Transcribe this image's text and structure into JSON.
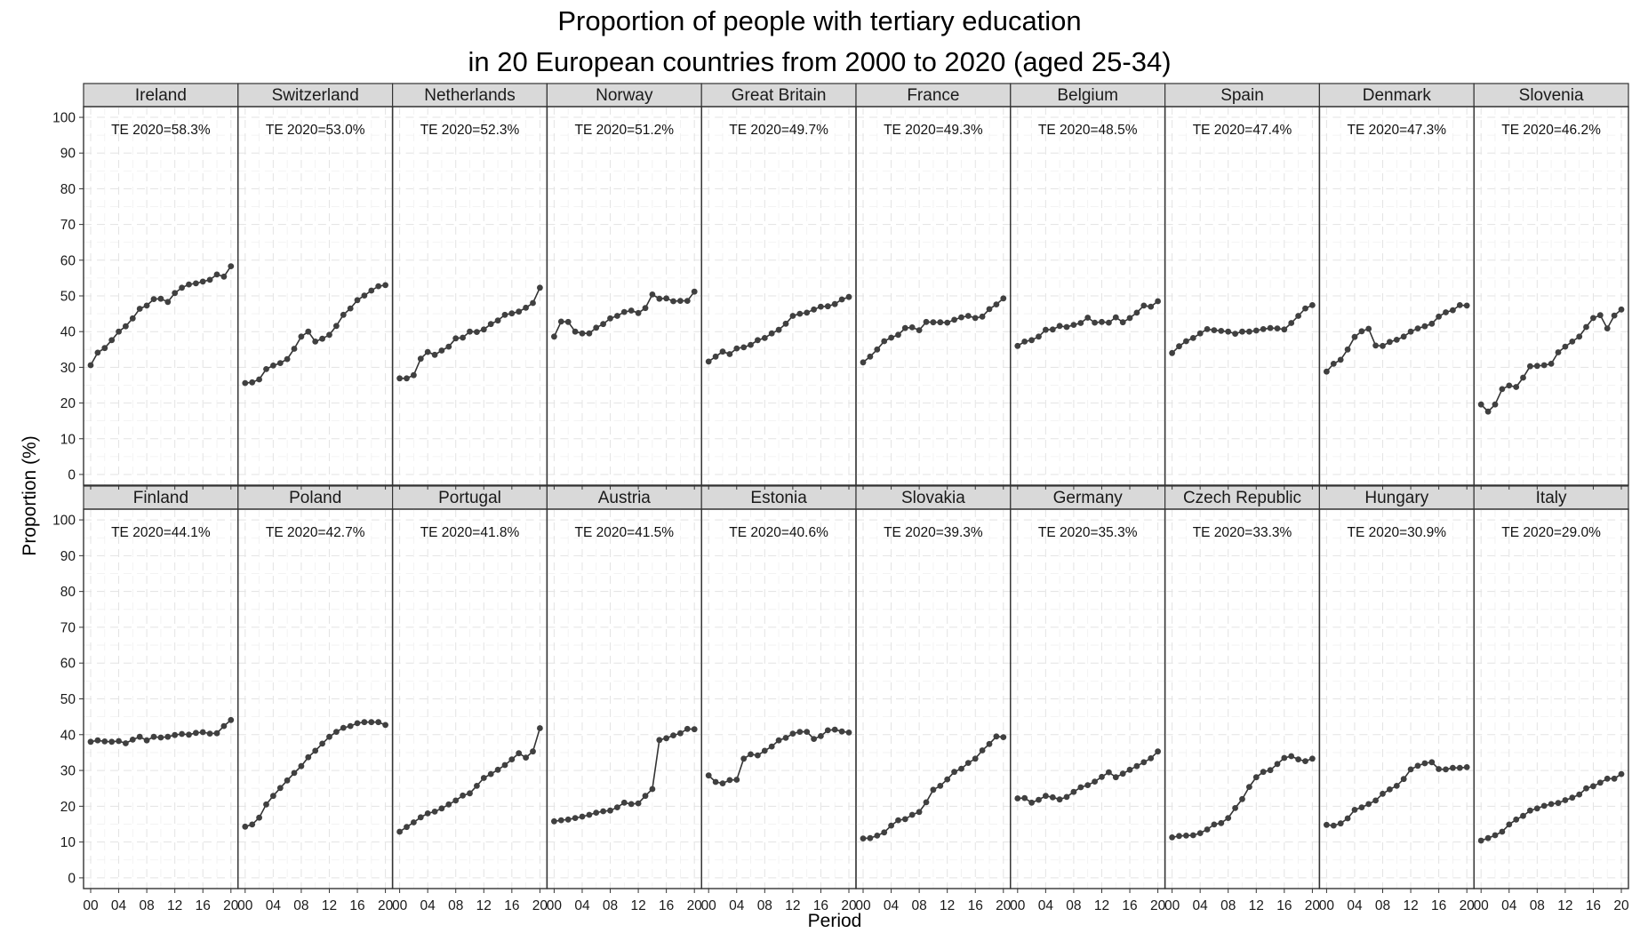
{
  "chart_data": {
    "type": "line",
    "title": [
      "Proportion of people with tertiary education",
      "in 20 European countries from 2000 to 2020 (aged 25-34)"
    ],
    "xlabel": "Period",
    "ylabel": "Proportion (%)",
    "x": [
      2000,
      2001,
      2002,
      2003,
      2004,
      2005,
      2006,
      2007,
      2008,
      2009,
      2010,
      2011,
      2012,
      2013,
      2014,
      2015,
      2016,
      2017,
      2018,
      2019,
      2020
    ],
    "x_ticks": [
      "00",
      "04",
      "08",
      "12",
      "16",
      "20"
    ],
    "x_tick_values": [
      2000,
      2004,
      2008,
      2012,
      2016,
      2020
    ],
    "ylim": [
      -3,
      103
    ],
    "y_ticks": [
      0,
      10,
      20,
      30,
      40,
      50,
      60,
      70,
      80,
      90,
      100
    ],
    "layout": "facet 2 rows x 10 columns",
    "grid": true,
    "panels": [
      {
        "country": "Ireland",
        "annotation": "TE 2020=58.3%",
        "values": [
          30.6,
          34.1,
          35.4,
          37.6,
          40.0,
          41.5,
          43.7,
          46.4,
          47.3,
          49.1,
          49.2,
          48.3,
          50.8,
          52.3,
          53.2,
          53.5,
          54.0,
          54.5,
          56.0,
          55.4,
          58.3
        ]
      },
      {
        "country": "Switzerland",
        "annotation": "TE 2020=53.0%",
        "values": [
          25.6,
          25.8,
          26.6,
          29.5,
          30.5,
          31.2,
          32.3,
          35.2,
          38.6,
          40.0,
          37.2,
          38.0,
          39.1,
          41.6,
          44.7,
          46.5,
          48.8,
          50.1,
          51.5,
          52.7,
          53.0
        ]
      },
      {
        "country": "Netherlands",
        "annotation": "TE 2020=52.3%",
        "values": [
          26.9,
          26.9,
          27.8,
          32.4,
          34.3,
          33.5,
          34.7,
          35.8,
          38.1,
          38.3,
          40.0,
          39.9,
          40.6,
          42.1,
          43.1,
          44.7,
          45.1,
          45.6,
          46.7,
          48.0,
          52.3
        ]
      },
      {
        "country": "Norway",
        "annotation": "TE 2020=51.2%",
        "values": [
          38.6,
          42.8,
          42.7,
          40.0,
          39.5,
          39.5,
          41.1,
          42.1,
          43.7,
          44.4,
          45.5,
          45.9,
          45.2,
          46.6,
          50.4,
          49.2,
          49.3,
          48.5,
          48.6,
          48.6,
          51.2
        ]
      },
      {
        "country": "Great Britain",
        "annotation": "TE 2020=49.7%",
        "values": [
          31.6,
          33.0,
          34.4,
          33.7,
          35.3,
          35.6,
          36.3,
          37.6,
          38.2,
          39.5,
          40.5,
          42.2,
          44.4,
          45.0,
          45.3,
          46.2,
          47.0,
          47.1,
          47.7,
          49.0,
          49.7
        ]
      },
      {
        "country": "France",
        "annotation": "TE 2020=49.3%",
        "values": [
          31.4,
          33.0,
          35.0,
          37.3,
          38.3,
          39.1,
          41.0,
          41.2,
          40.4,
          42.7,
          42.6,
          42.6,
          42.5,
          43.3,
          44.0,
          44.4,
          43.8,
          44.2,
          46.3,
          47.6,
          49.3
        ]
      },
      {
        "country": "Belgium",
        "annotation": "TE 2020=48.5%",
        "values": [
          36.0,
          37.2,
          37.6,
          38.6,
          40.5,
          40.6,
          41.6,
          41.3,
          41.9,
          42.4,
          43.9,
          42.5,
          42.7,
          42.5,
          44.0,
          42.6,
          43.8,
          45.3,
          47.3,
          47.0,
          48.5
        ]
      },
      {
        "country": "Spain",
        "annotation": "TE 2020=47.4%",
        "values": [
          34.0,
          35.9,
          37.3,
          38.2,
          39.5,
          40.7,
          40.4,
          40.2,
          40.0,
          39.4,
          40.0,
          40.0,
          40.3,
          40.7,
          41.0,
          40.9,
          40.6,
          42.4,
          44.4,
          46.5,
          47.4
        ]
      },
      {
        "country": "Denmark",
        "annotation": "TE 2020=47.3%",
        "values": [
          28.8,
          31.0,
          32.1,
          35.0,
          38.5,
          40.1,
          40.8,
          36.1,
          36.0,
          37.1,
          37.7,
          38.6,
          40.0,
          40.9,
          41.5,
          42.2,
          44.2,
          45.4,
          46.0,
          47.4,
          47.3
        ]
      },
      {
        "country": "Slovenia",
        "annotation": "TE 2020=46.2%",
        "values": [
          19.6,
          17.6,
          19.6,
          23.9,
          24.9,
          24.5,
          27.1,
          30.3,
          30.4,
          30.6,
          31.0,
          34.2,
          35.8,
          37.2,
          38.6,
          41.3,
          43.8,
          44.6,
          40.9,
          44.5,
          46.2
        ]
      },
      {
        "country": "Finland",
        "annotation": "TE 2020=44.1%",
        "values": [
          38.0,
          38.4,
          38.1,
          38.0,
          38.2,
          37.6,
          38.6,
          39.4,
          38.4,
          39.4,
          39.2,
          39.4,
          39.9,
          40.2,
          40.0,
          40.5,
          40.7,
          40.3,
          40.4,
          42.4,
          44.1
        ]
      },
      {
        "country": "Poland",
        "annotation": "TE 2020=42.7%",
        "values": [
          14.3,
          14.9,
          16.8,
          20.5,
          22.9,
          25.1,
          27.2,
          29.3,
          31.2,
          33.7,
          35.5,
          37.5,
          39.4,
          40.8,
          41.9,
          42.4,
          43.2,
          43.5,
          43.5,
          43.5,
          42.7
        ]
      },
      {
        "country": "Portugal",
        "annotation": "TE 2020=41.8%",
        "values": [
          12.9,
          14.2,
          15.5,
          16.9,
          18.0,
          18.5,
          19.4,
          20.5,
          21.6,
          23.0,
          23.6,
          25.7,
          27.9,
          29.0,
          30.2,
          31.5,
          33.1,
          34.8,
          33.6,
          35.3,
          41.8
        ]
      },
      {
        "country": "Austria",
        "annotation": "TE 2020=41.5%",
        "values": [
          15.8,
          16.1,
          16.3,
          16.7,
          17.1,
          17.6,
          18.2,
          18.6,
          18.8,
          19.7,
          21.0,
          20.6,
          20.8,
          22.9,
          24.8,
          38.5,
          39.0,
          39.8,
          40.4,
          41.6,
          41.5
        ]
      },
      {
        "country": "Estonia",
        "annotation": "TE 2020=40.6%",
        "values": [
          28.6,
          26.8,
          26.4,
          27.3,
          27.4,
          33.3,
          34.5,
          34.2,
          35.5,
          36.7,
          38.4,
          39.1,
          40.3,
          40.8,
          40.8,
          38.8,
          39.6,
          41.2,
          41.4,
          40.9,
          40.6
        ]
      },
      {
        "country": "Slovakia",
        "annotation": "TE 2020=39.3%",
        "values": [
          11.0,
          11.1,
          11.8,
          12.7,
          14.6,
          16.1,
          16.4,
          17.6,
          18.4,
          21.1,
          24.6,
          25.7,
          27.5,
          29.6,
          30.5,
          32.1,
          33.3,
          35.6,
          37.4,
          39.5,
          39.3
        ]
      },
      {
        "country": "Germany",
        "annotation": "TE 2020=35.3%",
        "values": [
          22.2,
          22.3,
          21.0,
          21.8,
          22.9,
          22.5,
          21.9,
          22.6,
          24.0,
          25.3,
          25.9,
          26.9,
          28.2,
          29.5,
          28.1,
          29.1,
          30.2,
          31.2,
          32.3,
          33.4,
          35.3
        ]
      },
      {
        "country": "Czech Republic",
        "annotation": "TE 2020=33.3%",
        "values": [
          11.3,
          11.7,
          11.8,
          11.9,
          12.5,
          13.5,
          14.9,
          15.3,
          16.7,
          19.5,
          22.0,
          25.4,
          28.1,
          29.6,
          30.1,
          31.8,
          33.5,
          34.0,
          33.1,
          32.6,
          33.3
        ]
      },
      {
        "country": "Hungary",
        "annotation": "TE 2020=30.9%",
        "values": [
          14.8,
          14.6,
          15.2,
          16.6,
          19.0,
          19.7,
          20.6,
          21.6,
          23.5,
          24.7,
          25.7,
          27.6,
          30.3,
          31.3,
          32.0,
          32.3,
          30.4,
          30.3,
          30.7,
          30.7,
          30.9
        ]
      },
      {
        "country": "Italy",
        "annotation": "TE 2020=29.0%",
        "values": [
          10.4,
          11.1,
          11.9,
          12.9,
          14.9,
          16.3,
          17.3,
          18.8,
          19.4,
          20.1,
          20.6,
          20.9,
          21.7,
          22.4,
          23.3,
          25.0,
          25.6,
          26.6,
          27.7,
          27.7,
          29.0
        ]
      }
    ]
  }
}
